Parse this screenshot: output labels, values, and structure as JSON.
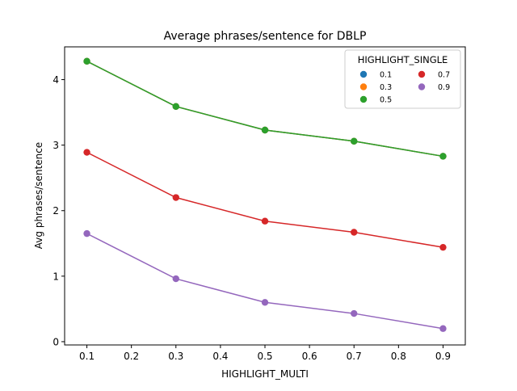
{
  "chart_data": {
    "type": "line",
    "title": "Average phrases/sentence for DBLP",
    "xlabel": "HIGHLIGHT_MULTI",
    "ylabel": "Avg phrases/sentence",
    "xlim": [
      0.05,
      0.95
    ],
    "ylim": [
      -0.05,
      4.5
    ],
    "x": [
      0.1,
      0.3,
      0.5,
      0.7,
      0.9
    ],
    "xticks": [
      "0.1",
      "0.2",
      "0.3",
      "0.4",
      "0.5",
      "0.6",
      "0.7",
      "0.8",
      "0.9"
    ],
    "yticks": [
      "0",
      "1",
      "2",
      "3",
      "4"
    ],
    "grid": false,
    "legend": {
      "title": "HIGHLIGHT_SINGLE",
      "placement": "top-right",
      "columns": 2
    },
    "series": [
      {
        "name": "0.1",
        "color": "#1f77b4",
        "values": [
          4.28,
          3.59,
          3.23,
          3.06,
          2.83
        ]
      },
      {
        "name": "0.3",
        "color": "#ff7f0e",
        "values": [
          4.28,
          3.59,
          3.23,
          3.06,
          2.83
        ]
      },
      {
        "name": "0.5",
        "color": "#2ca02c",
        "values": [
          4.28,
          3.59,
          3.23,
          3.06,
          2.83
        ]
      },
      {
        "name": "0.7",
        "color": "#d62728",
        "values": [
          2.89,
          2.2,
          1.84,
          1.67,
          1.44
        ]
      },
      {
        "name": "0.9",
        "color": "#9467bd",
        "values": [
          1.65,
          0.96,
          0.6,
          0.43,
          0.2
        ]
      }
    ]
  }
}
